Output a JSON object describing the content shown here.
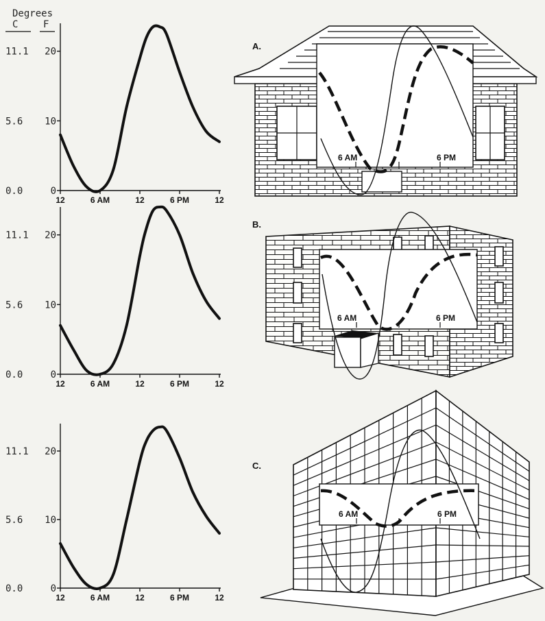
{
  "axis_header": {
    "title": "Degrees",
    "unit_c": "C",
    "unit_f": "F"
  },
  "y_labels_c": [
    "11.1",
    "5.6",
    "0.0"
  ],
  "y_labels_f": [
    "20",
    "10",
    "0"
  ],
  "x_labels": [
    "12",
    "6 AM",
    "12",
    "6 PM",
    "12"
  ],
  "inset_labels": {
    "am": "6 AM",
    "pm": "6 PM"
  },
  "panels": [
    {
      "letter": "A.",
      "building": "small-brick-house"
    },
    {
      "letter": "B.",
      "building": "medium-brick-building"
    },
    {
      "letter": "C.",
      "building": "large-framed-building"
    }
  ],
  "chart_data": [
    {
      "type": "line",
      "name": "panel-A-temperature",
      "x_ticks": [
        "12",
        "6 AM",
        "12",
        "6 PM",
        "12"
      ],
      "x": [
        0,
        2,
        4,
        6,
        8,
        10,
        12,
        13,
        14,
        15,
        16,
        18,
        20,
        22,
        24
      ],
      "y": [
        8,
        3.5,
        0.5,
        0,
        3,
        12,
        19,
        22,
        23.5,
        23.5,
        22.5,
        17,
        12,
        8.5,
        7
      ],
      "xlim": [
        0,
        24
      ],
      "ylim_f": [
        0,
        24
      ],
      "y_ticks_c": [
        0.0,
        5.6,
        11.1
      ],
      "y_ticks_f": [
        0,
        10,
        20
      ]
    },
    {
      "type": "line",
      "name": "panel-B-temperature",
      "x_ticks": [
        "12",
        "6 AM",
        "12",
        "6 PM",
        "12"
      ],
      "x": [
        0,
        2,
        4,
        6,
        8,
        10,
        12,
        13,
        14,
        15,
        16,
        18,
        20,
        22,
        24
      ],
      "y": [
        7,
        3.5,
        0.5,
        0,
        1.5,
        7,
        17,
        21,
        23.5,
        24,
        23.5,
        20,
        14.5,
        10.5,
        8
      ],
      "xlim": [
        0,
        24
      ],
      "ylim_f": [
        0,
        24
      ],
      "y_ticks_c": [
        0.0,
        5.6,
        11.1
      ],
      "y_ticks_f": [
        0,
        10,
        20
      ]
    },
    {
      "type": "line",
      "name": "panel-C-temperature",
      "x_ticks": [
        "12",
        "6 AM",
        "12",
        "6 PM",
        "12"
      ],
      "x": [
        0,
        2,
        4,
        6,
        8,
        10,
        12,
        13,
        14,
        15,
        16,
        18,
        20,
        22,
        24
      ],
      "y": [
        6.5,
        3,
        0.5,
        0,
        2,
        10,
        18.5,
        21.5,
        23,
        23.5,
        23,
        19,
        14,
        10.5,
        8
      ],
      "xlim": [
        0,
        24
      ],
      "ylim_f": [
        0,
        24
      ],
      "y_ticks_c": [
        0.0,
        5.6,
        11.1
      ],
      "y_ticks_f": [
        0,
        10,
        20
      ]
    }
  ]
}
